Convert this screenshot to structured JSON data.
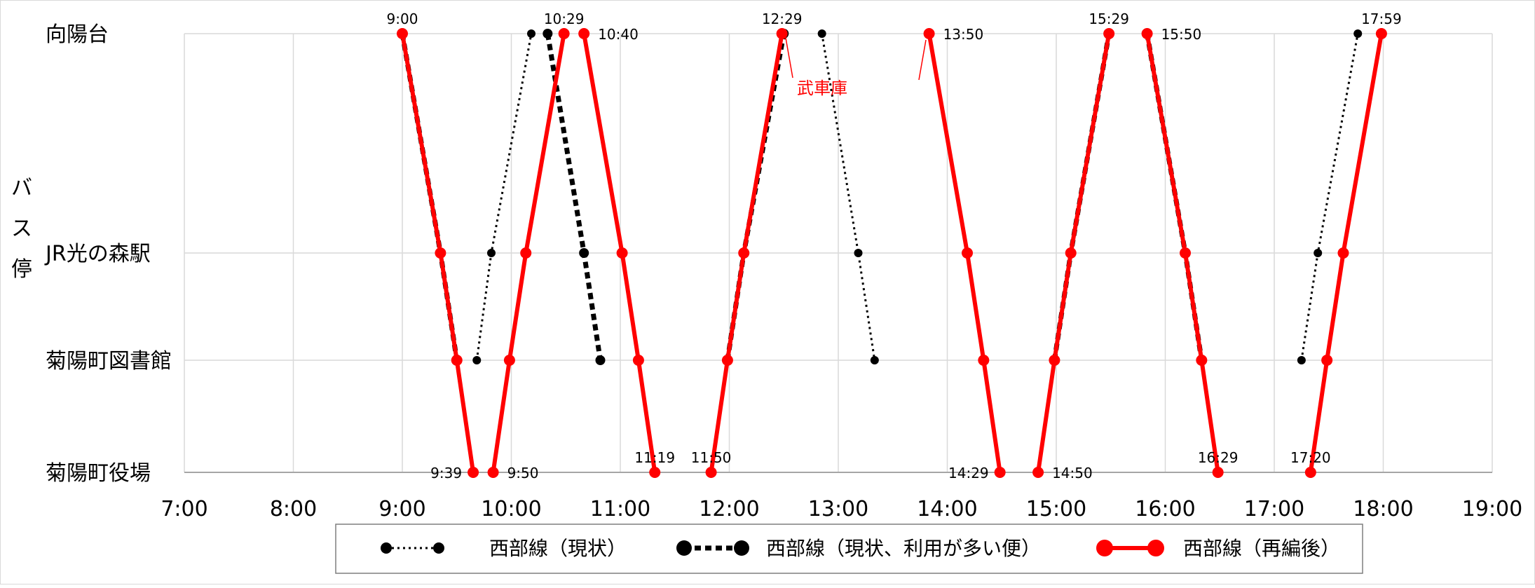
{
  "chart_data": {
    "type": "line",
    "title": "",
    "xlabel": "",
    "ylabel": "バス停",
    "x_ticks": [
      "7:00",
      "8:00",
      "9:00",
      "10:00",
      "11:00",
      "12:00",
      "13:00",
      "14:00",
      "15:00",
      "16:00",
      "17:00",
      "18:00",
      "19:00"
    ],
    "xlim": [
      "7:00",
      "19:00"
    ],
    "stops": [
      "向陽台",
      "JR光の森駅",
      "菊陽町図書館",
      "菊陽町役場"
    ],
    "grid": true,
    "legend_position": "bottom",
    "colors": {
      "current": "#000000",
      "busy": "#000000",
      "reorg": "#ff0000"
    },
    "series": [
      {
        "name": "西部線（現状）",
        "style": "dotted",
        "trips": [
          [
            [
              "9:41",
              "菊陽町図書館"
            ],
            [
              "9:49",
              "JR光の森駅"
            ],
            [
              "10:11",
              "向陽台"
            ]
          ],
          [
            [
              "12:51",
              "向陽台"
            ],
            [
              "13:11",
              "JR光の森駅"
            ],
            [
              "13:20",
              "菊陽町図書館"
            ]
          ],
          [
            [
              "17:15",
              "菊陽町図書館"
            ],
            [
              "17:24",
              "JR光の森駅"
            ],
            [
              "17:46",
              "向陽台"
            ]
          ]
        ]
      },
      {
        "name": "西部線（現状、利用が多い便）",
        "style": "dashed",
        "trips": [
          [
            [
              "9:00",
              "向陽台"
            ],
            [
              "9:21",
              "JR光の森駅"
            ],
            [
              "9:30",
              "菊陽町図書館"
            ]
          ],
          [
            [
              "10:20",
              "向陽台"
            ],
            [
              "10:40",
              "JR光の森駅"
            ],
            [
              "10:49",
              "菊陽町図書館"
            ]
          ],
          [
            [
              "11:59",
              "菊陽町図書館"
            ],
            [
              "12:08",
              "JR光の森駅"
            ],
            [
              "12:30",
              "向陽台"
            ]
          ],
          [
            [
              "14:59",
              "菊陽町図書館"
            ],
            [
              "15:08",
              "JR光の森駅"
            ],
            [
              "15:29",
              "向陽台"
            ]
          ],
          [
            [
              "15:50",
              "向陽台"
            ],
            [
              "16:11",
              "JR光の森駅"
            ],
            [
              "16:20",
              "菊陽町図書館"
            ]
          ]
        ]
      },
      {
        "name": "西部線（再編後）",
        "style": "solid",
        "trips": [
          [
            [
              "9:00",
              "向陽台"
            ],
            [
              "9:21",
              "JR光の森駅"
            ],
            [
              "9:30",
              "菊陽町図書館"
            ],
            [
              "9:39",
              "菊陽町役場"
            ]
          ],
          [
            [
              "9:50",
              "菊陽町役場"
            ],
            [
              "9:59",
              "菊陽町図書館"
            ],
            [
              "10:08",
              "JR光の森駅"
            ],
            [
              "10:29",
              "向陽台"
            ]
          ],
          [
            [
              "10:40",
              "向陽台"
            ],
            [
              "11:01",
              "JR光の森駅"
            ],
            [
              "11:10",
              "菊陽町図書館"
            ],
            [
              "11:19",
              "菊陽町役場"
            ]
          ],
          [
            [
              "11:50",
              "菊陽町役場"
            ],
            [
              "11:59",
              "菊陽町図書館"
            ],
            [
              "12:08",
              "JR光の森駅"
            ],
            [
              "12:29",
              "向陽台"
            ]
          ],
          [
            [
              "13:50",
              "向陽台"
            ],
            [
              "14:11",
              "JR光の森駅"
            ],
            [
              "14:20",
              "菊陽町図書館"
            ],
            [
              "14:29",
              "菊陽町役場"
            ]
          ],
          [
            [
              "14:50",
              "菊陽町役場"
            ],
            [
              "14:59",
              "菊陽町図書館"
            ],
            [
              "15:08",
              "JR光の森駅"
            ],
            [
              "15:29",
              "向陽台"
            ]
          ],
          [
            [
              "15:50",
              "向陽台"
            ],
            [
              "16:11",
              "JR光の森駅"
            ],
            [
              "16:20",
              "菊陽町図書館"
            ],
            [
              "16:29",
              "菊陽町役場"
            ]
          ],
          [
            [
              "17:20",
              "菊陽町役場"
            ],
            [
              "17:29",
              "菊陽町図書館"
            ],
            [
              "17:38",
              "JR光の森駅"
            ],
            [
              "17:59",
              "向陽台"
            ]
          ]
        ]
      }
    ],
    "data_labels": [
      {
        "text": "9:00",
        "time": "9:00",
        "stop": "向陽台",
        "anchor": "above"
      },
      {
        "text": "10:29",
        "time": "10:29",
        "stop": "向陽台",
        "anchor": "above"
      },
      {
        "text": "10:40",
        "time": "10:40",
        "stop": "向陽台",
        "anchor": "right"
      },
      {
        "text": "12:29",
        "time": "12:29",
        "stop": "向陽台",
        "anchor": "above"
      },
      {
        "text": "13:50",
        "time": "13:50",
        "stop": "向陽台",
        "anchor": "right"
      },
      {
        "text": "15:29",
        "time": "15:29",
        "stop": "向陽台",
        "anchor": "above"
      },
      {
        "text": "15:50",
        "time": "15:50",
        "stop": "向陽台",
        "anchor": "right"
      },
      {
        "text": "17:59",
        "time": "17:59",
        "stop": "向陽台",
        "anchor": "above"
      },
      {
        "text": "9:39",
        "time": "9:39",
        "stop": "菊陽町役場",
        "anchor": "left"
      },
      {
        "text": "9:50",
        "time": "9:50",
        "stop": "菊陽町役場",
        "anchor": "right"
      },
      {
        "text": "11:19",
        "time": "11:19",
        "stop": "菊陽町役場",
        "anchor": "above"
      },
      {
        "text": "11:50",
        "time": "11:50",
        "stop": "菊陽町役場",
        "anchor": "above"
      },
      {
        "text": "14:29",
        "time": "14:29",
        "stop": "菊陽町役場",
        "anchor": "left"
      },
      {
        "text": "14:50",
        "time": "14:50",
        "stop": "菊陽町役場",
        "anchor": "right"
      },
      {
        "text": "16:29",
        "time": "16:29",
        "stop": "菊陽町役場",
        "anchor": "above"
      },
      {
        "text": "17:20",
        "time": "17:20",
        "stop": "菊陽町役場",
        "anchor": "above"
      }
    ],
    "annotations": [
      {
        "text": "武車庫",
        "color": "#ff0000"
      }
    ]
  }
}
